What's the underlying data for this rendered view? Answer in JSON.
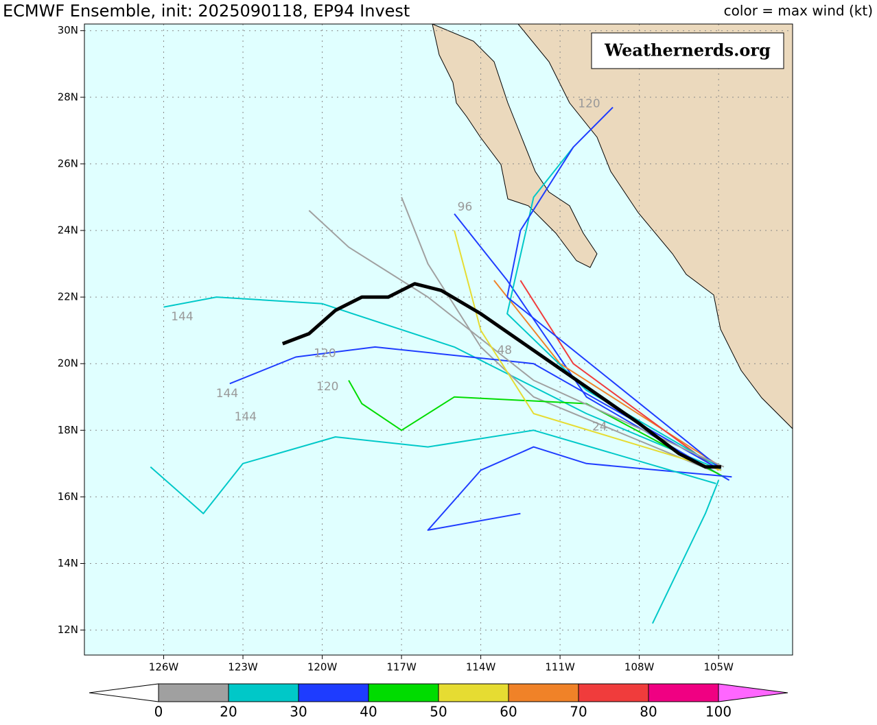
{
  "chart_data": {
    "type": "track",
    "title": "ECMWF Ensemble, init: 2025090118, EP94 Invest",
    "subtitle": "color = max wind (kt)",
    "watermark": "Weathernerds.org",
    "xlim": [
      -129,
      -102.2
    ],
    "ylim": [
      11.25,
      30.2
    ],
    "xticks": [
      {
        "value": -126,
        "label": "126W"
      },
      {
        "value": -123,
        "label": "123W"
      },
      {
        "value": -120,
        "label": "120W"
      },
      {
        "value": -117,
        "label": "117W"
      },
      {
        "value": -114,
        "label": "114W"
      },
      {
        "value": -111,
        "label": "111W"
      },
      {
        "value": -108,
        "label": "108W"
      },
      {
        "value": -105,
        "label": "105W"
      }
    ],
    "yticks": [
      {
        "value": 12,
        "label": "12N"
      },
      {
        "value": 14,
        "label": "14N"
      },
      {
        "value": 16,
        "label": "16N"
      },
      {
        "value": 18,
        "label": "18N"
      },
      {
        "value": 20,
        "label": "20N"
      },
      {
        "value": 22,
        "label": "22N"
      },
      {
        "value": 24,
        "label": "24N"
      },
      {
        "value": 26,
        "label": "26N"
      },
      {
        "value": 28,
        "label": "28N"
      },
      {
        "value": 30,
        "label": "30N"
      }
    ],
    "grid": true,
    "series": [
      {
        "color": "#00c8c8",
        "x": [
          -104.9,
          -110,
          -115,
          -120,
          -124,
          -126
        ],
        "y": [
          16.8,
          18.5,
          20.5,
          21.8,
          22.0,
          21.7
        ]
      },
      {
        "color": "#1e3cff",
        "x": [
          -104.6,
          -110,
          -113,
          -115
        ],
        "y": [
          16.5,
          19,
          22.5,
          24.5
        ]
      },
      {
        "color": "#a0a0a0",
        "x": [
          -105,
          -112,
          -114,
          -116,
          -117
        ],
        "y": [
          16.7,
          19,
          20.5,
          23,
          25
        ]
      },
      {
        "color": "#00dc00",
        "x": [
          -104.8,
          -110,
          -115,
          -117,
          -118.5,
          -119
        ],
        "y": [
          16.6,
          18.8,
          19,
          18,
          18.8,
          19.5
        ]
      },
      {
        "color": "#00c8c8",
        "x": [
          -105,
          -105.5,
          -107.5
        ],
        "y": [
          16.5,
          15.5,
          12.2
        ]
      },
      {
        "color": "#1e3cff",
        "x": [
          -104.5,
          -110,
          -112,
          -114,
          -116,
          -112.5
        ],
        "y": [
          16.6,
          17,
          17.5,
          16.8,
          15,
          15.5
        ]
      },
      {
        "color": "#f08228",
        "x": [
          -104.9,
          -111,
          -113.5
        ],
        "y": [
          16.9,
          20,
          22.5
        ]
      },
      {
        "color": "#f03c3c",
        "x": [
          -105,
          -110.5,
          -112.5
        ],
        "y": [
          16.8,
          20,
          22.5
        ]
      },
      {
        "color": "#00c8c8",
        "x": [
          -105,
          -110,
          -113,
          -112,
          -110.5
        ],
        "y": [
          16.9,
          19.2,
          21.5,
          25,
          26.5
        ]
      },
      {
        "color": "#1e3cff",
        "x": [
          -104.9,
          -112,
          -118,
          -121,
          -123.5
        ],
        "y": [
          16.8,
          20,
          20.5,
          20.2,
          19.4
        ]
      },
      {
        "color": "#00c8c8",
        "x": [
          -105.1,
          -112,
          -116,
          -119.5,
          -123,
          -124.5,
          -126.5
        ],
        "y": [
          16.4,
          18,
          17.5,
          17.8,
          17,
          15.5,
          16.9
        ]
      },
      {
        "color": "#1e3cff",
        "x": [
          -105,
          -113,
          -112.5,
          -110.5,
          -109
        ],
        "y": [
          16.9,
          22,
          24,
          26.5,
          27.7
        ]
      },
      {
        "color": "#a0a0a0",
        "x": [
          -104.8,
          -112,
          -116,
          -119,
          -120.5
        ],
        "y": [
          16.9,
          19.5,
          22,
          23.5,
          24.6
        ]
      },
      {
        "color": "#e6dc32",
        "x": [
          -104.9,
          -112,
          -114,
          -115
        ],
        "y": [
          16.8,
          18.5,
          21,
          24
        ]
      },
      {
        "color": "#000000",
        "x": [
          -104.9,
          -105.5,
          -106.5,
          -108,
          -110,
          -112,
          -114,
          -115.5,
          -116.5,
          -117.5,
          -118.5,
          -119.5,
          -120.5,
          -121.5
        ],
        "y": [
          16.9,
          16.9,
          17.3,
          18.2,
          19.3,
          20.4,
          21.5,
          22.2,
          22.4,
          22.0,
          22.0,
          21.6,
          20.9,
          20.6
        ]
      }
    ],
    "annotations": [
      {
        "text": "144",
        "x": -125.3,
        "y": 21.4
      },
      {
        "text": "144",
        "x": -123.6,
        "y": 19.1
      },
      {
        "text": "144",
        "x": -122.9,
        "y": 18.4
      },
      {
        "text": "120",
        "x": -119.8,
        "y": 19.3
      },
      {
        "text": "120",
        "x": -119.9,
        "y": 20.3
      },
      {
        "text": "96",
        "x": -114.6,
        "y": 24.7
      },
      {
        "text": "120",
        "x": -109.9,
        "y": 27.8
      },
      {
        "text": "48",
        "x": -113.1,
        "y": 20.4
      },
      {
        "text": "24",
        "x": -109.5,
        "y": 18.1
      }
    ],
    "colorbar": {
      "bounds": [
        0,
        20,
        30,
        40,
        50,
        60,
        70,
        80,
        100
      ],
      "colors": [
        "#a0a0a0",
        "#00c8c8",
        "#1e3cff",
        "#00dc00",
        "#e6dc32",
        "#f08228",
        "#f03c3c",
        "#f00082"
      ],
      "under": "#ffffff",
      "over": "#ff66ff"
    }
  }
}
